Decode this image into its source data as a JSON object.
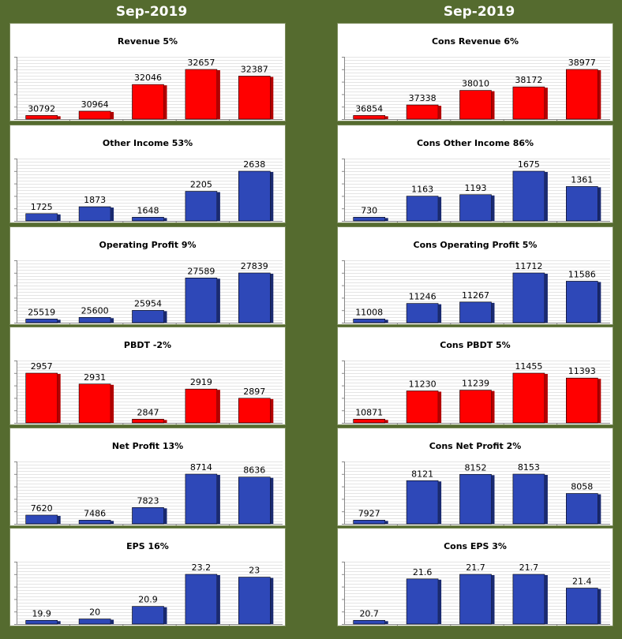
{
  "column_titles": [
    "Sep-2019",
    "Sep-2019"
  ],
  "colors": {
    "red": "#ff0000",
    "red_side": "#b30000",
    "blue": "#2e48b8",
    "blue_side": "#1a2a70"
  },
  "chart_data": [
    {
      "type": "bar",
      "title": "Revenue 5%",
      "color": "red",
      "values": [
        30792,
        30964,
        32046,
        32657,
        32387
      ],
      "labels": [
        "30792",
        "30964",
        "32046",
        "32657",
        "32387"
      ]
    },
    {
      "type": "bar",
      "title": "Cons Revenue 6%",
      "color": "red",
      "values": [
        36854,
        37338,
        38010,
        38172,
        38977
      ],
      "labels": [
        "36854",
        "37338",
        "38010",
        "38172",
        "38977"
      ]
    },
    {
      "type": "bar",
      "title": "Other Income 53%",
      "color": "blue",
      "values": [
        1725,
        1873,
        1648,
        2205,
        2638
      ],
      "labels": [
        "1725",
        "1873",
        "1648",
        "2205",
        "2638"
      ]
    },
    {
      "type": "bar",
      "title": "Cons Other Income 86%",
      "color": "blue",
      "values": [
        730,
        1163,
        1193,
        1675,
        1361
      ],
      "labels": [
        "730",
        "1163",
        "1193",
        "1675",
        "1361"
      ]
    },
    {
      "type": "bar",
      "title": "Operating Profit 9%",
      "color": "blue",
      "values": [
        25519,
        25600,
        25954,
        27589,
        27839
      ],
      "labels": [
        "25519",
        "25600",
        "25954",
        "27589",
        "27839"
      ]
    },
    {
      "type": "bar",
      "title": "Cons Operating Profit 5%",
      "color": "blue",
      "values": [
        11008,
        11246,
        11267,
        11712,
        11586
      ],
      "labels": [
        "11008",
        "11246",
        "11267",
        "11712",
        "11586"
      ]
    },
    {
      "type": "bar",
      "title": "PBDT -2%",
      "color": "red",
      "values": [
        2957,
        2931,
        2847,
        2919,
        2897
      ],
      "labels": [
        "2957",
        "2931",
        "2847",
        "2919",
        "2897"
      ]
    },
    {
      "type": "bar",
      "title": "Cons PBDT 5%",
      "color": "red",
      "values": [
        10871,
        11230,
        11239,
        11455,
        11393
      ],
      "labels": [
        "10871",
        "11230",
        "11239",
        "11455",
        "11393"
      ]
    },
    {
      "type": "bar",
      "title": "Net Profit 13%",
      "color": "blue",
      "values": [
        7620,
        7486,
        7823,
        8714,
        8636
      ],
      "labels": [
        "7620",
        "7486",
        "7823",
        "8714",
        "8636"
      ]
    },
    {
      "type": "bar",
      "title": "Cons Net Profit 2%",
      "color": "blue",
      "values": [
        7927,
        8121,
        8152,
        8153,
        8058
      ],
      "labels": [
        "7927",
        "8121",
        "8152",
        "8153",
        "8058"
      ]
    },
    {
      "type": "bar",
      "title": "EPS 16%",
      "color": "blue",
      "values": [
        19.9,
        20,
        20.9,
        23.2,
        23
      ],
      "labels": [
        "19.9",
        "20",
        "20.9",
        "23.2",
        "23"
      ]
    },
    {
      "type": "bar",
      "title": "Cons EPS 3%",
      "color": "blue",
      "values": [
        20.7,
        21.6,
        21.7,
        21.7,
        21.4
      ],
      "labels": [
        "20.7",
        "21.6",
        "21.7",
        "21.7",
        "21.4"
      ]
    }
  ]
}
